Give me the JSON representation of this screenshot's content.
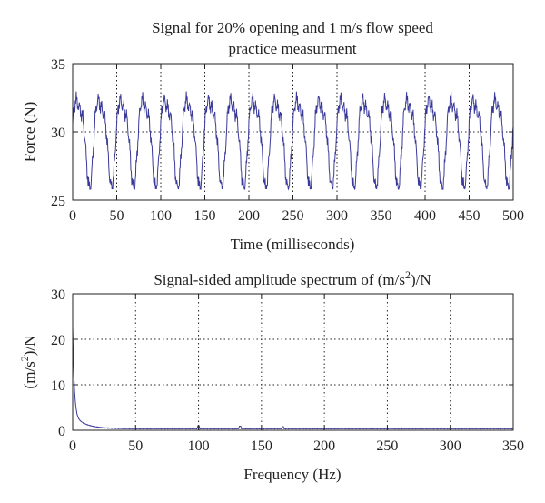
{
  "chart_data": [
    {
      "type": "line",
      "title_lines": [
        "Signal for 20% opening and 1 m/s flow speed",
        "practice measurment"
      ],
      "xlabel": "Time (milliseconds)",
      "ylabel": "Force (N)",
      "xlim": [
        0,
        500
      ],
      "ylim": [
        25,
        35
      ],
      "xticks": [
        0,
        50,
        100,
        150,
        200,
        250,
        300,
        350,
        400,
        450,
        500
      ],
      "yticks": [
        25,
        30,
        35
      ],
      "grid": "dotted",
      "line_color": "#3a3a9a",
      "signal": {
        "period_ms": 25,
        "samples_per_ms": 2,
        "mean": 29.7,
        "min": 25.8,
        "max": 33.6
      }
    },
    {
      "type": "line",
      "title": "Signal-sided amplitude spectrum of (m/s²)/N",
      "title_prefix": "Signal-sided amplitude spectrum of (m/s",
      "title_sup": "2",
      "title_suffix": ")/N",
      "xlabel": "Frequency (Hz)",
      "ylabel_prefix": "(m/s",
      "ylabel_sup": "2",
      "ylabel_suffix": ")/N",
      "xlim": [
        0,
        350
      ],
      "ylim": [
        0,
        30
      ],
      "xticks": [
        0,
        50,
        100,
        150,
        200,
        250,
        300,
        350
      ],
      "yticks": [
        0,
        10,
        20,
        30
      ],
      "grid": "dotted",
      "line_color": "#3a3a9a",
      "peaks": [
        {
          "x": 0,
          "y": 19.5
        },
        {
          "x": 1,
          "y": 7.5
        },
        {
          "x": 2,
          "y": 4.0
        },
        {
          "x": 4,
          "y": 2.2
        },
        {
          "x": 100,
          "y": 1.0
        },
        {
          "x": 133,
          "y": 0.9
        },
        {
          "x": 167,
          "y": 0.8
        }
      ]
    }
  ]
}
